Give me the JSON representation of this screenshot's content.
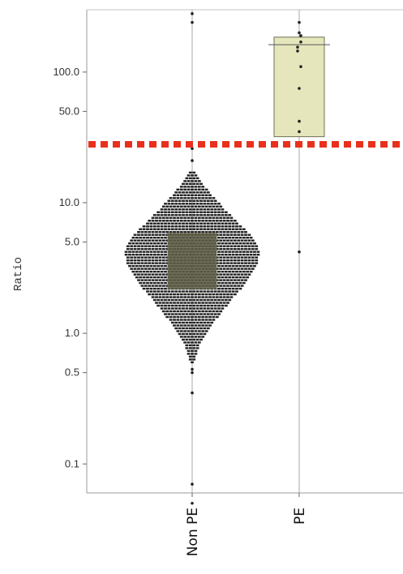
{
  "chart_data": {
    "type": "scatter",
    "subtype": "beeswarm with box",
    "ylabel": "Ratio",
    "yscale": "log",
    "ylim": [
      0.06,
      300
    ],
    "yticks": [
      0.1,
      0.5,
      1.0,
      5.0,
      10.0,
      50.0,
      100.0
    ],
    "ytick_labels": [
      "0.1",
      "0.5",
      "1.0",
      "5.0",
      "10.0",
      "50.0",
      "100.0"
    ],
    "categories": [
      "Non PE",
      "PE"
    ],
    "threshold": {
      "value": 28,
      "color": "#e8301c",
      "style": "dotted"
    },
    "boxes": [
      {
        "category": "Non PE",
        "q1": 2.2,
        "q3": 5.8
      },
      {
        "category": "PE",
        "q1": 32,
        "q3": 185,
        "median": 162
      }
    ],
    "distributions": [
      {
        "category": "Non PE",
        "profile": [
          [
            0.6,
            1
          ],
          [
            0.8,
            4
          ],
          [
            1.0,
            8
          ],
          [
            1.3,
            14
          ],
          [
            1.8,
            22
          ],
          [
            2.4,
            30
          ],
          [
            3.2,
            36
          ],
          [
            4.2,
            38
          ],
          [
            5.5,
            34
          ],
          [
            7.0,
            26
          ],
          [
            9.0,
            18
          ],
          [
            11.5,
            11
          ],
          [
            14.0,
            6
          ],
          [
            17.0,
            2
          ]
        ],
        "outliers": [
          0.05,
          0.07,
          0.35,
          0.5,
          0.53,
          21,
          26,
          240,
          280
        ]
      },
      {
        "category": "PE",
        "points": [
          4.2,
          35,
          42,
          75,
          110,
          145,
          155,
          170,
          190,
          200,
          240
        ]
      }
    ]
  },
  "colors": {
    "box_fill": "#e6e6bd",
    "box_stroke": "#707054",
    "nonpe_box_fill": "#5e5e46",
    "point": "#222222",
    "threshold": "#e8301c"
  }
}
